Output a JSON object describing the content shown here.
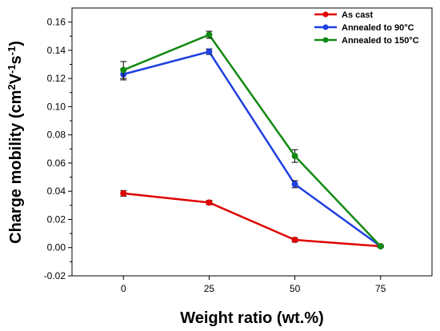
{
  "chart_data": {
    "type": "line",
    "xlabel": "Weight ratio (wt.%)",
    "ylabel_parts": [
      "Charge mobility (cm",
      "2",
      "V",
      "-1",
      "s",
      "-1",
      ")"
    ],
    "x_ticks": [
      "0",
      "25",
      "50",
      "75"
    ],
    "y_ticks": [
      "-0.02",
      "0.00",
      "0.02",
      "0.04",
      "0.06",
      "0.08",
      "0.10",
      "0.12",
      "0.14",
      "0.16"
    ],
    "xlim": [
      -15,
      90
    ],
    "ylim": [
      -0.02,
      0.17
    ],
    "legend_position": "top-right",
    "series": [
      {
        "name": "As cast",
        "color": "#e00000",
        "x": [
          0,
          25,
          50,
          75
        ],
        "y": [
          0.0385,
          0.032,
          0.0055,
          0.001
        ],
        "err": [
          0.002,
          0.0015,
          0.0015,
          0.0008
        ]
      },
      {
        "name": "Annealed to 90°C",
        "color": "#1f3fe0",
        "x": [
          0,
          25,
          50,
          75
        ],
        "y": [
          0.123,
          0.139,
          0.045,
          0.001
        ],
        "err": [
          0.004,
          0.002,
          0.0025,
          0.0008
        ]
      },
      {
        "name": "Annealed to 150°C",
        "color": "#138a13",
        "x": [
          0,
          25,
          50,
          75
        ],
        "y": [
          0.126,
          0.151,
          0.065,
          0.001
        ],
        "err": [
          0.006,
          0.0025,
          0.0045,
          0.0008
        ]
      }
    ]
  }
}
